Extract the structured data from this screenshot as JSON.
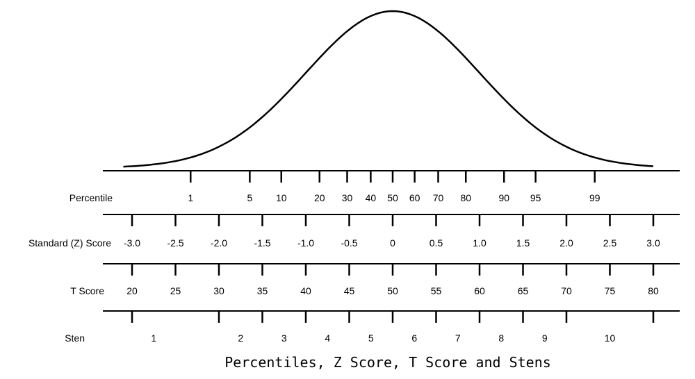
{
  "caption": "Percentiles, Z Score, T Score and Stens",
  "scales": [
    {
      "key": "percentile",
      "label": "Percentile",
      "ticks": [
        {
          "z": -2.326,
          "label": "1"
        },
        {
          "z": -1.645,
          "label": "5"
        },
        {
          "z": -1.282,
          "label": "10"
        },
        {
          "z": -0.842,
          "label": "20"
        },
        {
          "z": -0.524,
          "label": "30"
        },
        {
          "z": -0.253,
          "label": "40"
        },
        {
          "z": 0.0,
          "label": "50"
        },
        {
          "z": 0.253,
          "label": "60"
        },
        {
          "z": 0.524,
          "label": "70"
        },
        {
          "z": 0.842,
          "label": "80"
        },
        {
          "z": 1.282,
          "label": "90"
        },
        {
          "z": 1.645,
          "label": "95"
        },
        {
          "z": 2.326,
          "label": "99"
        }
      ]
    },
    {
      "key": "z-score",
      "label": "Standard (Z) Score",
      "ticks": [
        {
          "z": -3.0,
          "label": "-3.0"
        },
        {
          "z": -2.5,
          "label": "-2.5"
        },
        {
          "z": -2.0,
          "label": "-2.0"
        },
        {
          "z": -1.5,
          "label": "-1.5"
        },
        {
          "z": -1.0,
          "label": "-1.0"
        },
        {
          "z": -0.5,
          "label": "-0.5"
        },
        {
          "z": 0.0,
          "label": "0"
        },
        {
          "z": 0.5,
          "label": "0.5"
        },
        {
          "z": 1.0,
          "label": "1.0"
        },
        {
          "z": 1.5,
          "label": "1.5"
        },
        {
          "z": 2.0,
          "label": "2.0"
        },
        {
          "z": 2.5,
          "label": "2.5"
        },
        {
          "z": 3.0,
          "label": "3.0"
        }
      ]
    },
    {
      "key": "t-score",
      "label": "T Score",
      "ticks": [
        {
          "z": -3.0,
          "label": "20"
        },
        {
          "z": -2.5,
          "label": "25"
        },
        {
          "z": -2.0,
          "label": "30"
        },
        {
          "z": -1.5,
          "label": "35"
        },
        {
          "z": -1.0,
          "label": "40"
        },
        {
          "z": -0.5,
          "label": "45"
        },
        {
          "z": 0.0,
          "label": "50"
        },
        {
          "z": 0.5,
          "label": "55"
        },
        {
          "z": 1.0,
          "label": "60"
        },
        {
          "z": 1.5,
          "label": "65"
        },
        {
          "z": 2.0,
          "label": "70"
        },
        {
          "z": 2.5,
          "label": "75"
        },
        {
          "z": 3.0,
          "label": "80"
        }
      ]
    },
    {
      "key": "sten",
      "label": "Sten",
      "ticks": [
        {
          "z": -3.0
        },
        {
          "z": -2.0
        },
        {
          "z": -1.5
        },
        {
          "z": -1.0
        },
        {
          "z": -0.5
        },
        {
          "z": 0.0
        },
        {
          "z": 0.5
        },
        {
          "z": 1.0
        },
        {
          "z": 1.5
        },
        {
          "z": 2.0
        },
        {
          "z": 3.0
        }
      ],
      "bands": [
        {
          "z": -2.75,
          "label": "1"
        },
        {
          "z": -1.75,
          "label": "2"
        },
        {
          "z": -1.25,
          "label": "3"
        },
        {
          "z": -0.75,
          "label": "4"
        },
        {
          "z": -0.25,
          "label": "5"
        },
        {
          "z": 0.25,
          "label": "6"
        },
        {
          "z": 0.75,
          "label": "7"
        },
        {
          "z": 1.25,
          "label": "8"
        },
        {
          "z": 1.75,
          "label": "9"
        },
        {
          "z": 2.5,
          "label": "10"
        }
      ]
    }
  ]
}
